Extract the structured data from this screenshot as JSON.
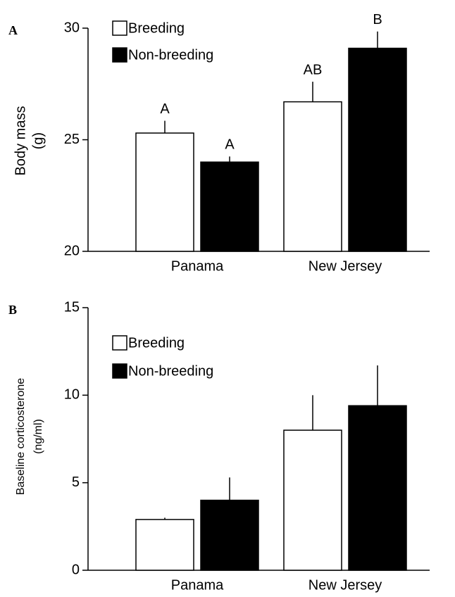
{
  "chart_data": [
    {
      "type": "bar",
      "title": "A",
      "ylabel": [
        "Body mass",
        "(g)"
      ],
      "categories": [
        "Panama",
        "New Jersey"
      ],
      "series": [
        {
          "name": "Breeding",
          "color": "#ffffff",
          "values": [
            25.3,
            26.7
          ],
          "errors": [
            0.55,
            0.9
          ],
          "annotations": [
            "A",
            "AB"
          ]
        },
        {
          "name": "Non-breeding",
          "color": "#000000",
          "values": [
            24.0,
            29.1
          ],
          "errors": [
            0.25,
            0.75
          ],
          "annotations": [
            "A",
            "B"
          ]
        }
      ],
      "ylim": [
        20,
        30
      ],
      "yticks": [
        20,
        25,
        30
      ],
      "legend": "upper left"
    },
    {
      "type": "bar",
      "title": "B",
      "ylabel": [
        "Baseline corticosterone",
        "(ng/ml)"
      ],
      "categories": [
        "Panama",
        "New Jersey"
      ],
      "series": [
        {
          "name": "Breeding",
          "color": "#ffffff",
          "values": [
            2.9,
            8.0
          ],
          "errors": [
            0.1,
            2.0
          ]
        },
        {
          "name": "Non-breeding",
          "color": "#000000",
          "values": [
            4.0,
            9.4
          ],
          "errors": [
            1.3,
            2.3
          ]
        }
      ],
      "ylim": [
        0,
        15
      ],
      "yticks": [
        0,
        5,
        10,
        15
      ],
      "legend": "upper left"
    }
  ]
}
